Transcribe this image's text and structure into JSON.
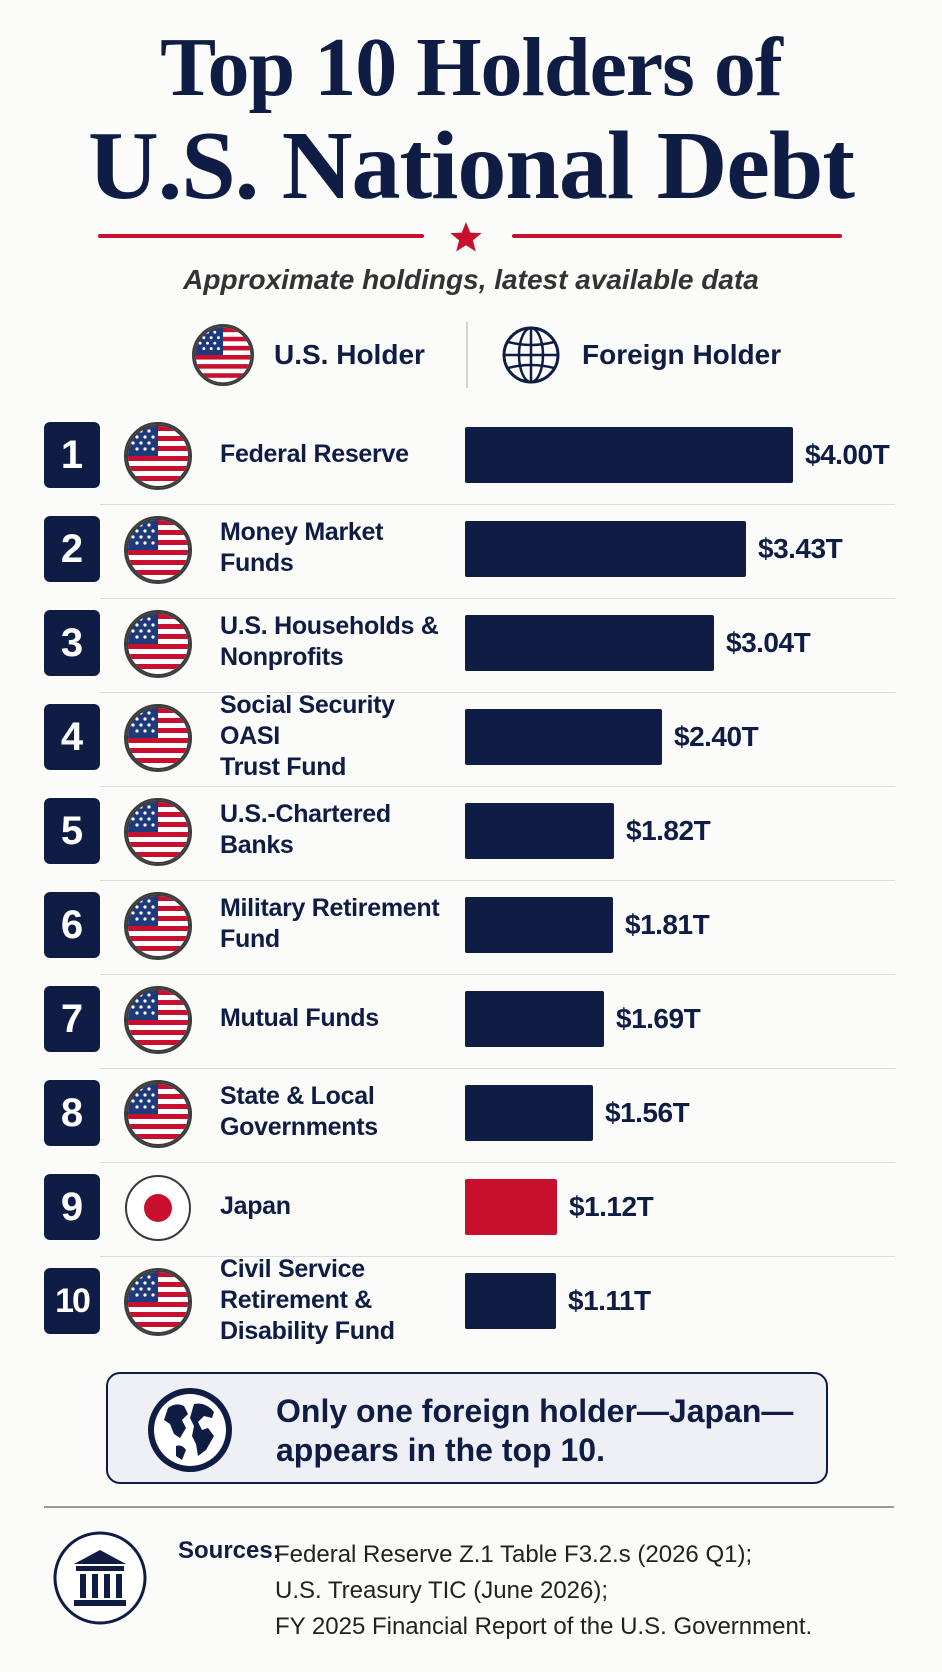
{
  "header": {
    "title_line1": "Top 10 Holders of",
    "title_line2": "U.S. National Debt",
    "subtitle": "Approximate holdings, latest available data"
  },
  "legend": {
    "us_label": "U.S. Holder",
    "us_icon": "us-flag-icon",
    "foreign_label": "Foreign Holder",
    "foreign_icon": "globe-icon"
  },
  "colors": {
    "navy": "#0f1d44",
    "red": "#c8102e",
    "us_bar": "#0f1d44",
    "foreign_bar": "#c8102e"
  },
  "chart_data": {
    "type": "bar",
    "orientation": "horizontal",
    "title": "Top 10 Holders of U.S. National Debt",
    "subtitle": "Approximate holdings, latest available data",
    "unit": "$ trillions",
    "xlim": [
      0,
      4.0
    ],
    "grid": false,
    "rows": [
      {
        "rank": "1",
        "name": "Federal Reserve",
        "lines": [
          "Federal Reserve"
        ],
        "value": 4.0,
        "label": "$4.00T",
        "type": "us"
      },
      {
        "rank": "2",
        "name": "Money Market Funds",
        "lines": [
          "Money Market Funds"
        ],
        "value": 3.43,
        "label": "$3.43T",
        "type": "us"
      },
      {
        "rank": "3",
        "name": "U.S. Households & Nonprofits",
        "lines": [
          "U.S. Households &",
          "Nonprofits"
        ],
        "value": 3.04,
        "label": "$3.04T",
        "type": "us"
      },
      {
        "rank": "4",
        "name": "Social Security OASI Trust Fund",
        "lines": [
          "Social Security OASI",
          "Trust Fund"
        ],
        "value": 2.4,
        "label": "$2.40T",
        "type": "us"
      },
      {
        "rank": "5",
        "name": "U.S.-Chartered Banks",
        "lines": [
          "U.S.-Chartered Banks"
        ],
        "value": 1.82,
        "label": "$1.82T",
        "type": "us"
      },
      {
        "rank": "6",
        "name": "Military Retirement Fund",
        "lines": [
          "Military Retirement Fund"
        ],
        "value": 1.81,
        "label": "$1.81T",
        "type": "us"
      },
      {
        "rank": "7",
        "name": "Mutual Funds",
        "lines": [
          "Mutual Funds"
        ],
        "value": 1.69,
        "label": "$1.69T",
        "type": "us"
      },
      {
        "rank": "8",
        "name": "State & Local Governments",
        "lines": [
          "State & Local",
          "Governments"
        ],
        "value": 1.56,
        "label": "$1.56T",
        "type": "us"
      },
      {
        "rank": "9",
        "name": "Japan",
        "lines": [
          "Japan"
        ],
        "value": 1.12,
        "label": "$1.12T",
        "type": "foreign"
      },
      {
        "rank": "10",
        "name": "Civil Service Retirement & Disability Fund",
        "lines": [
          "Civil Service Retirement &",
          "Disability Fund"
        ],
        "value": 1.11,
        "label": "$1.11T",
        "type": "us"
      }
    ]
  },
  "callout": {
    "icon": "world-globe-icon",
    "line1": "Only one foreign holder—Japan—",
    "line2": "appears in the top 10."
  },
  "sources": {
    "icon": "institution-icon",
    "label": "Sources:",
    "lines": [
      "Federal Reserve Z.1 Table F3.2.s (2026 Q1);",
      "U.S. Treasury TIC (June 2026);",
      "FY 2025 Financial Report of the U.S. Government."
    ]
  }
}
